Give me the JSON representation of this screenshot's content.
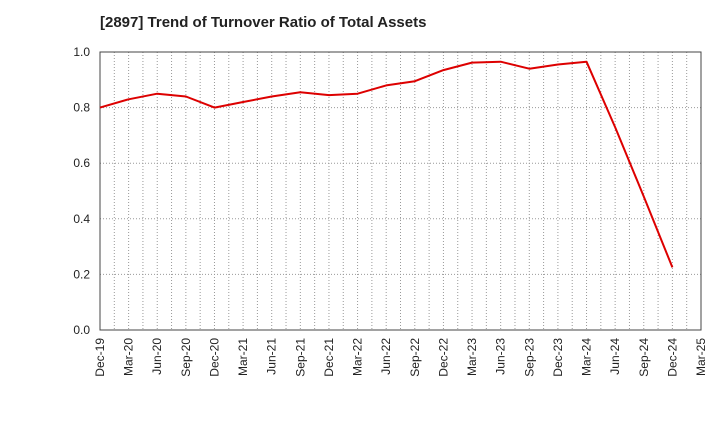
{
  "chart_data": {
    "type": "line",
    "title": "[2897]  Trend of Turnover Ratio of Total Assets",
    "xlabel": "",
    "ylabel": "",
    "x": [
      "Dec-19",
      "Mar-20",
      "Jun-20",
      "Sep-20",
      "Dec-20",
      "Mar-21",
      "Jun-21",
      "Sep-21",
      "Dec-21",
      "Mar-22",
      "Jun-22",
      "Sep-22",
      "Dec-22",
      "Mar-23",
      "Jun-23",
      "Sep-23",
      "Dec-23",
      "Mar-24",
      "Jun-24",
      "Sep-24",
      "Dec-24",
      "Mar-25"
    ],
    "series": [
      {
        "values": [
          0.8,
          0.83,
          0.85,
          0.84,
          0.8,
          0.82,
          0.84,
          0.855,
          0.845,
          0.85,
          0.88,
          0.895,
          0.935,
          0.962,
          0.965,
          0.94,
          0.955,
          0.965,
          0.73,
          0.48,
          0.225,
          null
        ]
      }
    ],
    "ylim": [
      0,
      1.0
    ],
    "yticks": [
      "0.0",
      "0.2",
      "0.4",
      "0.6",
      "0.8",
      "1.0"
    ],
    "grid": true,
    "colors": {
      "line": "#dd0000",
      "grid": "#999999",
      "axis": "#444444"
    }
  }
}
